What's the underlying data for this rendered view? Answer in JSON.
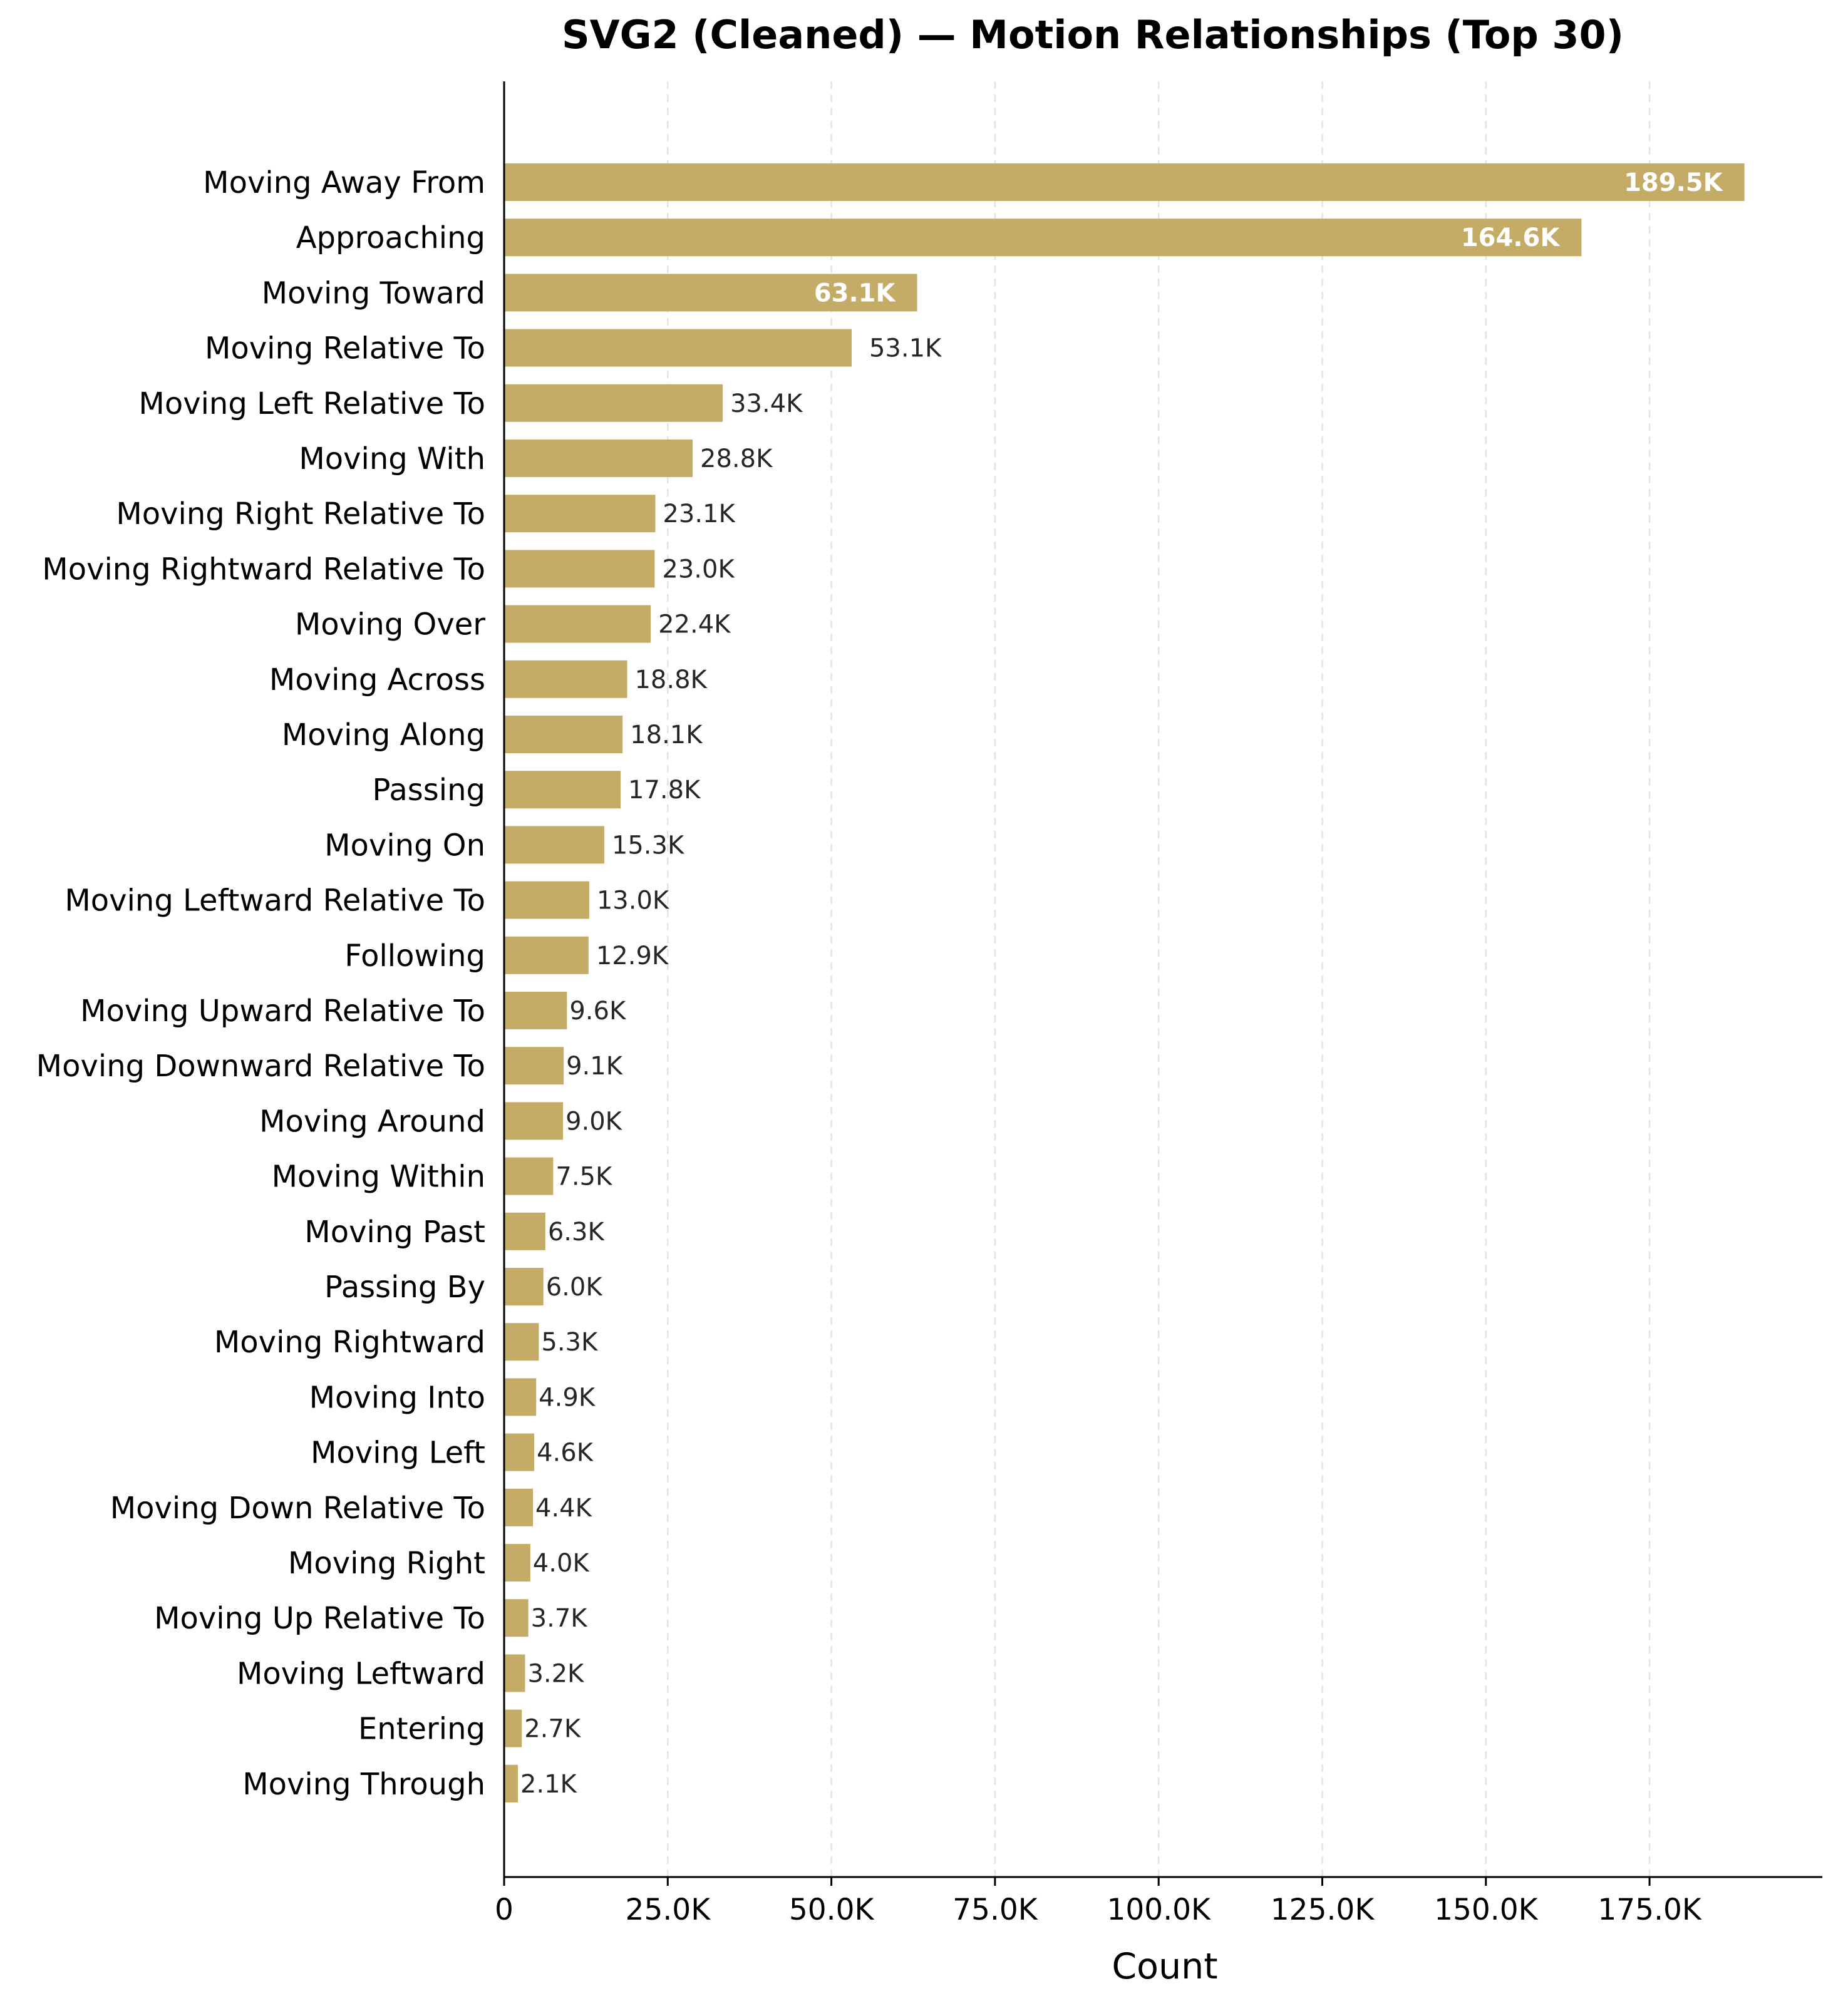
{
  "chart_data": {
    "type": "bar",
    "orientation": "horizontal",
    "title": "SVG2 (Cleaned) — Motion Relationships (Top 30)",
    "xlabel": "Count",
    "ylabel": "",
    "xlim": [
      0,
      200000
    ],
    "x_ticks": [
      0,
      25000,
      50000,
      75000,
      100000,
      125000,
      150000,
      175000
    ],
    "x_tick_labels": [
      "0",
      "25.0K",
      "50.0K",
      "75.0K",
      "100.0K",
      "125.0K",
      "150.0K",
      "175.0K"
    ],
    "grid": "x-axis dashed",
    "bar_color": "#c4ac67",
    "categories": [
      "Moving Away From",
      "Approaching",
      "Moving Toward",
      "Moving Relative To",
      "Moving Left Relative To",
      "Moving With",
      "Moving Right Relative To",
      "Moving Rightward Relative To",
      "Moving Over",
      "Moving Across",
      "Moving Along",
      "Passing",
      "Moving On",
      "Moving Leftward Relative To",
      "Following",
      "Moving Upward Relative To",
      "Moving Downward Relative To",
      "Moving Around",
      "Moving Within",
      "Moving Past",
      "Passing By",
      "Moving Rightward",
      "Moving Into",
      "Moving Left",
      "Moving Down Relative To",
      "Moving Right",
      "Moving Up Relative To",
      "Moving Leftward",
      "Entering",
      "Moving Through"
    ],
    "values": [
      189500,
      164600,
      63100,
      53100,
      33400,
      28800,
      23100,
      23000,
      22400,
      18800,
      18100,
      17800,
      15300,
      13000,
      12900,
      9600,
      9100,
      9000,
      7500,
      6300,
      6000,
      5300,
      4900,
      4600,
      4400,
      4000,
      3700,
      3200,
      2700,
      2100
    ],
    "value_labels": [
      "189.5K",
      "164.6K",
      "63.1K",
      "53.1K",
      "33.4K",
      "28.8K",
      "23.1K",
      "23.0K",
      "22.4K",
      "18.8K",
      "18.1K",
      "17.8K",
      "15.3K",
      "13.0K",
      "12.9K",
      "9.6K",
      "9.1K",
      "9.0K",
      "7.5K",
      "6.3K",
      "6.0K",
      "5.3K",
      "4.9K",
      "4.6K",
      "4.4K",
      "4.0K",
      "3.7K",
      "3.2K",
      "2.7K",
      "2.1K"
    ],
    "labels_inside_bars": [
      "189.5K",
      "164.6K",
      "63.1K"
    ]
  }
}
